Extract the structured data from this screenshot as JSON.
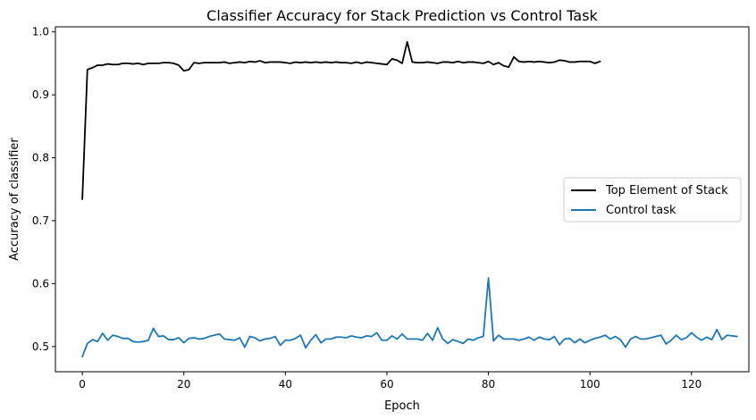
{
  "chart_data": {
    "type": "line",
    "title": "Classifier Accuracy for Stack Prediction vs Control Task",
    "xlabel": "Epoch",
    "ylabel": "Accuracy of classifier",
    "xlim": [
      -5.3,
      131.3
    ],
    "ylim": [
      0.46,
      1.008
    ],
    "xticks": [
      0,
      20,
      40,
      60,
      80,
      100,
      120
    ],
    "yticks": [
      0.5,
      0.6,
      0.7,
      0.8,
      0.9,
      1.0
    ],
    "xtick_labels": [
      "0",
      "20",
      "40",
      "60",
      "80",
      "100",
      "120"
    ],
    "ytick_labels": [
      "0.5",
      "0.6",
      "0.7",
      "0.8",
      "0.9",
      "1.0"
    ],
    "grid": false,
    "legend_position": "center-right",
    "series": [
      {
        "name": "Top Element of Stack",
        "color": "#000000",
        "x_start": 0,
        "values": [
          0.734,
          0.94,
          0.943,
          0.947,
          0.947,
          0.949,
          0.948,
          0.948,
          0.95,
          0.95,
          0.949,
          0.95,
          0.948,
          0.95,
          0.95,
          0.95,
          0.951,
          0.951,
          0.95,
          0.947,
          0.938,
          0.94,
          0.951,
          0.95,
          0.951,
          0.951,
          0.951,
          0.951,
          0.952,
          0.95,
          0.951,
          0.952,
          0.951,
          0.953,
          0.952,
          0.954,
          0.951,
          0.952,
          0.952,
          0.952,
          0.951,
          0.95,
          0.952,
          0.951,
          0.952,
          0.951,
          0.952,
          0.951,
          0.952,
          0.951,
          0.952,
          0.951,
          0.951,
          0.95,
          0.952,
          0.95,
          0.952,
          0.951,
          0.95,
          0.949,
          0.948,
          0.957,
          0.955,
          0.95,
          0.984,
          0.952,
          0.951,
          0.951,
          0.952,
          0.951,
          0.95,
          0.952,
          0.952,
          0.951,
          0.953,
          0.951,
          0.952,
          0.952,
          0.951,
          0.95,
          0.953,
          0.948,
          0.951,
          0.946,
          0.944,
          0.96,
          0.953,
          0.952,
          0.953,
          0.952,
          0.953,
          0.952,
          0.951,
          0.952,
          0.955,
          0.954,
          0.952,
          0.952,
          0.953,
          0.953,
          0.953,
          0.95,
          0.953
        ]
      },
      {
        "name": "Control task",
        "color": "#1f77b4",
        "x_start": 0,
        "values": [
          0.484,
          0.505,
          0.511,
          0.508,
          0.521,
          0.51,
          0.518,
          0.516,
          0.513,
          0.513,
          0.508,
          0.507,
          0.508,
          0.51,
          0.529,
          0.516,
          0.517,
          0.511,
          0.511,
          0.514,
          0.506,
          0.513,
          0.514,
          0.512,
          0.513,
          0.516,
          0.518,
          0.52,
          0.512,
          0.511,
          0.51,
          0.514,
          0.499,
          0.516,
          0.514,
          0.509,
          0.512,
          0.513,
          0.516,
          0.502,
          0.51,
          0.51,
          0.513,
          0.518,
          0.498,
          0.51,
          0.519,
          0.506,
          0.512,
          0.512,
          0.515,
          0.515,
          0.514,
          0.517,
          0.515,
          0.514,
          0.517,
          0.516,
          0.522,
          0.51,
          0.51,
          0.517,
          0.512,
          0.52,
          0.512,
          0.512,
          0.512,
          0.51,
          0.521,
          0.51,
          0.53,
          0.512,
          0.505,
          0.511,
          0.508,
          0.505,
          0.512,
          0.51,
          0.514,
          0.516,
          0.609,
          0.509,
          0.518,
          0.512,
          0.512,
          0.512,
          0.51,
          0.512,
          0.515,
          0.51,
          0.515,
          0.512,
          0.511,
          0.516,
          0.503,
          0.512,
          0.513,
          0.506,
          0.512,
          0.506,
          0.51,
          0.513,
          0.515,
          0.518,
          0.512,
          0.516,
          0.511,
          0.499,
          0.512,
          0.516,
          0.512,
          0.512,
          0.514,
          0.516,
          0.518,
          0.504,
          0.51,
          0.518,
          0.511,
          0.514,
          0.522,
          0.515,
          0.51,
          0.515,
          0.511,
          0.527,
          0.511,
          0.518,
          0.517,
          0.516
        ]
      }
    ]
  }
}
